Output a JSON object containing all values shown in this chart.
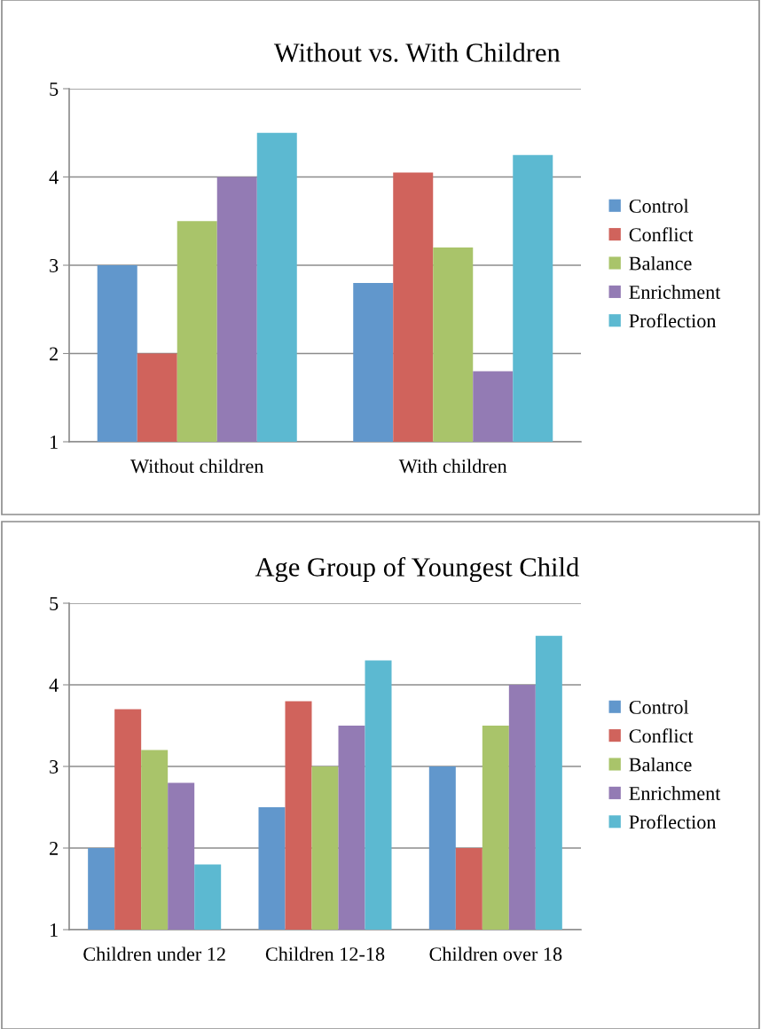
{
  "chart_data": [
    {
      "type": "bar",
      "title": "Without vs. With Children",
      "categories": [
        "Without children",
        "With children"
      ],
      "series": [
        {
          "name": "Control",
          "color": "#6197cc",
          "values": [
            3,
            2.8
          ]
        },
        {
          "name": "Conflict",
          "color": "#d0635c",
          "values": [
            2,
            4.05
          ]
        },
        {
          "name": "Balance",
          "color": "#a9c46a",
          "values": [
            3.5,
            3.2
          ]
        },
        {
          "name": "Enrichment",
          "color": "#937bb4",
          "values": [
            4,
            1.8
          ]
        },
        {
          "name": "Proflection",
          "color": "#5cb9d1",
          "values": [
            4.5,
            4.25
          ]
        }
      ],
      "ylim": [
        1,
        5
      ],
      "yticks": [
        1,
        2,
        3,
        4,
        5
      ],
      "grid": "y",
      "legend": "right"
    },
    {
      "type": "bar",
      "title": "Age Group of Youngest Child",
      "categories": [
        "Children under 12",
        "Children 12-18",
        "Children over 18"
      ],
      "series": [
        {
          "name": "Control",
          "color": "#6197cc",
          "values": [
            2,
            2.5,
            3
          ]
        },
        {
          "name": "Conflict",
          "color": "#d0635c",
          "values": [
            3.7,
            3.8,
            2
          ]
        },
        {
          "name": "Balance",
          "color": "#a9c46a",
          "values": [
            3.2,
            3,
            3.5
          ]
        },
        {
          "name": "Enrichment",
          "color": "#937bb4",
          "values": [
            2.8,
            3.5,
            4
          ]
        },
        {
          "name": "Proflection",
          "color": "#5cb9d1",
          "values": [
            1.8,
            4.3,
            4.6
          ]
        }
      ],
      "ylim": [
        1,
        5
      ],
      "yticks": [
        1,
        2,
        3,
        4,
        5
      ],
      "grid": "y",
      "legend": "right"
    }
  ]
}
